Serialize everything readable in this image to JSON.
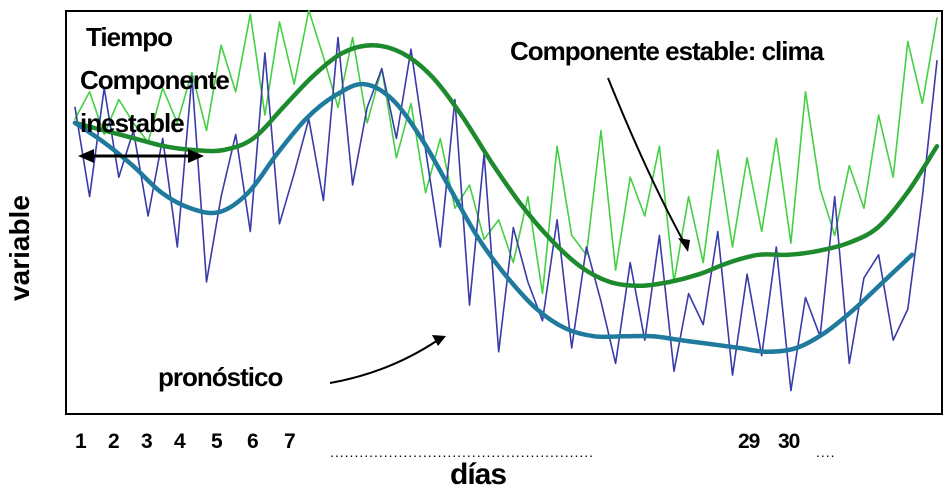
{
  "chart_data": {
    "type": "line",
    "xlabel": "días",
    "ylabel": "variable",
    "x_ticks": [
      "1",
      "2",
      "3",
      "4",
      "5",
      "6",
      "7",
      "29",
      "30"
    ],
    "x_tick_separator": "......................................................",
    "x_tick_tail": "....",
    "annotations": {
      "tiempo": "Tiempo",
      "componente_inestable_line1": "Componente",
      "componente_inestable_line2": "inestable",
      "componente_estable": "Componente estable: clima",
      "pronostico": "pronóstico"
    },
    "series": [
      {
        "key": "climate_smooth",
        "color": "#1e8a2e",
        "values": [
          0.74,
          0.72,
          0.7,
          0.68,
          0.67,
          0.67,
          0.7,
          0.78,
          0.86,
          0.92,
          0.94,
          0.92,
          0.86,
          0.76,
          0.64,
          0.53,
          0.44,
          0.37,
          0.33,
          0.32,
          0.33,
          0.35,
          0.38,
          0.4,
          0.4,
          0.41,
          0.43,
          0.47,
          0.56,
          0.68
        ]
      },
      {
        "key": "forecast_smooth",
        "color": "#1f7a9e",
        "values": [
          0.74,
          0.69,
          0.63,
          0.56,
          0.52,
          0.51,
          0.56,
          0.66,
          0.75,
          0.81,
          0.84,
          0.8,
          0.7,
          0.57,
          0.44,
          0.34,
          0.26,
          0.21,
          0.19,
          0.19,
          0.19,
          0.18,
          0.17,
          0.16,
          0.15,
          0.16,
          0.2,
          0.26,
          0.33,
          0.4
        ]
      },
      {
        "key": "climate_noisy",
        "color": "#44d044",
        "values": [
          0.75,
          0.82,
          0.71,
          0.8,
          0.74,
          0.69,
          0.83,
          0.74,
          0.87,
          0.72,
          0.94,
          0.82,
          1.02,
          0.76,
          1.0,
          0.84,
          1.03,
          0.91,
          0.78,
          0.96,
          0.74,
          0.88,
          0.65,
          0.79,
          0.56,
          0.7,
          0.52,
          0.58,
          0.44,
          0.49,
          0.38,
          0.55,
          0.3,
          0.68,
          0.45,
          0.4,
          0.72,
          0.36,
          0.6,
          0.5,
          0.68,
          0.33,
          0.55,
          0.38,
          0.67,
          0.42,
          0.65,
          0.46,
          0.7,
          0.43,
          0.82,
          0.57,
          0.45,
          0.63,
          0.52,
          0.76,
          0.6,
          0.95,
          0.79,
          1.01
        ]
      },
      {
        "key": "forecast_noisy",
        "color": "#3a3aa8",
        "values": [
          0.78,
          0.55,
          0.83,
          0.6,
          0.72,
          0.5,
          0.7,
          0.42,
          0.86,
          0.33,
          0.55,
          0.71,
          0.46,
          0.92,
          0.48,
          0.61,
          0.75,
          0.54,
          0.96,
          0.58,
          0.78,
          0.88,
          0.7,
          0.93,
          0.67,
          0.42,
          0.8,
          0.27,
          0.66,
          0.15,
          0.47,
          0.33,
          0.23,
          0.49,
          0.16,
          0.42,
          0.28,
          0.12,
          0.38,
          0.18,
          0.45,
          0.1,
          0.3,
          0.22,
          0.46,
          0.09,
          0.35,
          0.14,
          0.42,
          0.05,
          0.29,
          0.19,
          0.55,
          0.12,
          0.34,
          0.4,
          0.18,
          0.26,
          0.55,
          0.9
        ]
      }
    ]
  }
}
